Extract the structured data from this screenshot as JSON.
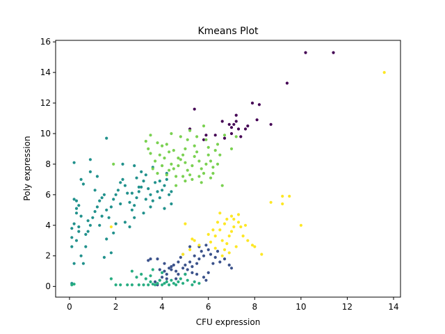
{
  "chart_data": {
    "type": "scatter",
    "title": "Kmeans Plot",
    "xlabel": "CFU expression",
    "ylabel": "Poly expression",
    "xlim": [
      -0.6,
      14.3
    ],
    "ylim": [
      -0.7,
      16.1
    ],
    "xticks": [
      0,
      2,
      4,
      6,
      8,
      10,
      12,
      14
    ],
    "yticks": [
      0,
      2,
      4,
      6,
      8,
      10,
      12,
      14,
      16
    ],
    "grid": false,
    "series": [
      {
        "color": "#440154",
        "points": [
          [
            10.2,
            15.3
          ],
          [
            11.4,
            15.3
          ],
          [
            9.4,
            13.3
          ],
          [
            7.9,
            12.0
          ],
          [
            8.2,
            11.9
          ],
          [
            7.2,
            11.2
          ],
          [
            5.4,
            11.6
          ],
          [
            6.6,
            10.8
          ],
          [
            6.9,
            10.6
          ],
          [
            7.2,
            10.8
          ],
          [
            7.7,
            10.5
          ],
          [
            7.6,
            10.3
          ],
          [
            8.1,
            10.9
          ],
          [
            8.7,
            10.6
          ],
          [
            5.9,
            9.9
          ],
          [
            6.3,
            9.9
          ],
          [
            6.7,
            9.7
          ],
          [
            7.0,
            10.0
          ],
          [
            7.3,
            10.3
          ],
          [
            7.4,
            9.8
          ],
          [
            7.0,
            10.4
          ],
          [
            5.2,
            10.3
          ],
          [
            5.8,
            9.6
          ],
          [
            7.1,
            10.6
          ]
        ]
      },
      {
        "color": "#3b528b",
        "points": [
          [
            3.5,
            1.8
          ],
          [
            3.8,
            1.8
          ],
          [
            4.1,
            1.5
          ],
          [
            4.4,
            1.3
          ],
          [
            4.6,
            1.0
          ],
          [
            4.2,
            0.8
          ],
          [
            4.0,
            0.6
          ],
          [
            3.9,
            0.4
          ],
          [
            3.7,
            0.3
          ],
          [
            4.3,
            1.2
          ],
          [
            4.5,
            1.4
          ],
          [
            4.7,
            1.6
          ],
          [
            4.9,
            1.2
          ],
          [
            5.0,
            0.8
          ],
          [
            5.1,
            1.1
          ],
          [
            5.2,
            1.6
          ],
          [
            5.3,
            1.3
          ],
          [
            5.5,
            1.5
          ],
          [
            5.6,
            1.8
          ],
          [
            5.4,
            2.0
          ],
          [
            5.7,
            2.3
          ],
          [
            5.9,
            2.7
          ],
          [
            6.0,
            2.4
          ],
          [
            5.8,
            2.0
          ],
          [
            6.1,
            2.1
          ],
          [
            6.3,
            1.9
          ],
          [
            6.5,
            1.6
          ],
          [
            6.7,
            1.8
          ],
          [
            6.9,
            1.4
          ],
          [
            7.0,
            1.2
          ],
          [
            6.2,
            1.5
          ],
          [
            5.5,
            0.8
          ],
          [
            5.8,
            0.6
          ],
          [
            5.9,
            0.4
          ],
          [
            6.0,
            0.9
          ],
          [
            4.8,
            1.9
          ],
          [
            4.9,
            2.1
          ],
          [
            5.2,
            2.6
          ],
          [
            3.4,
            1.7
          ],
          [
            3.9,
            1.1
          ],
          [
            4.1,
            1.0
          ],
          [
            4.2,
            0.5
          ],
          [
            3.8,
            0.1
          ],
          [
            4.6,
            0.5
          ],
          [
            5.0,
            1.4
          ],
          [
            5.3,
            0.9
          ],
          [
            6.4,
            2.3
          ],
          [
            5.6,
            2.6
          ],
          [
            4.4,
            1.1
          ],
          [
            4.7,
            0.8
          ]
        ]
      },
      {
        "color": "#21918c",
        "points": [
          [
            0.1,
            0.2
          ],
          [
            0.2,
            1.5
          ],
          [
            0.1,
            2.6
          ],
          [
            0.1,
            3.2
          ],
          [
            0.1,
            3.8
          ],
          [
            0.2,
            4.1
          ],
          [
            0.3,
            4.8
          ],
          [
            0.2,
            5.7
          ],
          [
            0.3,
            5.6
          ],
          [
            0.4,
            5.3
          ],
          [
            0.5,
            4.6
          ],
          [
            0.4,
            3.9
          ],
          [
            0.3,
            3.0
          ],
          [
            0.5,
            2.0
          ],
          [
            0.6,
            1.5
          ],
          [
            0.7,
            3.4
          ],
          [
            0.8,
            3.6
          ],
          [
            0.9,
            4.0
          ],
          [
            1.0,
            4.5
          ],
          [
            1.1,
            4.9
          ],
          [
            1.2,
            5.2
          ],
          [
            1.3,
            5.6
          ],
          [
            1.4,
            5.8
          ],
          [
            1.5,
            6.0
          ],
          [
            1.6,
            5.0
          ],
          [
            1.7,
            4.5
          ],
          [
            1.8,
            5.2
          ],
          [
            1.9,
            5.7
          ],
          [
            2.0,
            6.0
          ],
          [
            2.1,
            6.3
          ],
          [
            2.2,
            6.8
          ],
          [
            2.3,
            7.0
          ],
          [
            2.4,
            6.6
          ],
          [
            2.5,
            6.1
          ],
          [
            2.6,
            5.5
          ],
          [
            2.7,
            5.0
          ],
          [
            2.8,
            5.3
          ],
          [
            2.9,
            5.8
          ],
          [
            3.0,
            6.2
          ],
          [
            3.1,
            6.5
          ],
          [
            3.2,
            6.9
          ],
          [
            3.3,
            7.3
          ],
          [
            3.4,
            6.4
          ],
          [
            3.5,
            6.0
          ],
          [
            3.6,
            5.6
          ],
          [
            3.7,
            6.8
          ],
          [
            3.8,
            6.2
          ],
          [
            3.9,
            5.8
          ],
          [
            4.0,
            6.3
          ],
          [
            4.1,
            6.6
          ],
          [
            4.2,
            7.0
          ],
          [
            4.3,
            6.0
          ],
          [
            4.4,
            5.4
          ],
          [
            4.1,
            5.1
          ],
          [
            3.5,
            5.2
          ],
          [
            3.2,
            4.8
          ],
          [
            2.8,
            4.5
          ],
          [
            2.4,
            4.2
          ],
          [
            1.9,
            3.5
          ],
          [
            1.6,
            3.1
          ],
          [
            1.5,
            1.9
          ],
          [
            1.8,
            2.2
          ],
          [
            0.2,
            8.1
          ],
          [
            0.5,
            7.0
          ],
          [
            0.9,
            7.5
          ],
          [
            0.9,
            8.3
          ],
          [
            1.1,
            6.3
          ],
          [
            1.6,
            9.7
          ],
          [
            2.3,
            8.0
          ],
          [
            2.8,
            7.9
          ],
          [
            3.1,
            7.5
          ],
          [
            3.6,
            7.8
          ],
          [
            4.2,
            7.4
          ],
          [
            3.0,
            6.5
          ],
          [
            2.2,
            5.4
          ],
          [
            1.4,
            4.6
          ],
          [
            0.8,
            4.3
          ],
          [
            0.6,
            6.7
          ],
          [
            1.2,
            7.2
          ],
          [
            2.7,
            6.1
          ],
          [
            3.3,
            5.7
          ],
          [
            3.9,
            6.9
          ],
          [
            4.4,
            6.2
          ],
          [
            2.6,
            3.9
          ],
          [
            2.0,
            4.1
          ],
          [
            0.4,
            3.6
          ],
          [
            0.7,
            2.6
          ],
          [
            0.3,
            5.1
          ],
          [
            1.3,
            4.0
          ],
          [
            2.9,
            7.1
          ]
        ]
      },
      {
        "color": "#27ad81",
        "points": [
          [
            0.1,
            0.1
          ],
          [
            0.2,
            0.15
          ],
          [
            1.8,
            0.5
          ],
          [
            2.0,
            0.1
          ],
          [
            2.2,
            0.1
          ],
          [
            2.5,
            0.1
          ],
          [
            2.7,
            0.1
          ],
          [
            2.7,
            1.0
          ],
          [
            3.0,
            0.1
          ],
          [
            3.2,
            0.1
          ],
          [
            3.3,
            0.5
          ],
          [
            3.4,
            0.1
          ],
          [
            3.5,
            0.3
          ],
          [
            3.6,
            0.15
          ],
          [
            3.7,
            0.1
          ],
          [
            3.8,
            0.2
          ],
          [
            3.9,
            0.4
          ],
          [
            4.0,
            0.1
          ],
          [
            4.1,
            0.2
          ],
          [
            4.2,
            0.3
          ],
          [
            4.3,
            0.1
          ],
          [
            4.4,
            0.4
          ],
          [
            4.5,
            0.2
          ],
          [
            4.6,
            0.1
          ],
          [
            4.7,
            0.3
          ],
          [
            4.8,
            0.5
          ],
          [
            4.9,
            0.2
          ],
          [
            5.0,
            0.8
          ],
          [
            5.1,
            0.4
          ],
          [
            5.3,
            0.1
          ],
          [
            5.4,
            0.3
          ],
          [
            5.6,
            0.2
          ],
          [
            3.1,
            0.8
          ],
          [
            3.6,
            1.1
          ],
          [
            2.9,
            0.6
          ],
          [
            3.5,
            0.7
          ],
          [
            4.0,
            0.9
          ]
        ]
      },
      {
        "color": "#7ad151",
        "points": [
          [
            3.3,
            9.5
          ],
          [
            3.4,
            9.0
          ],
          [
            3.5,
            8.7
          ],
          [
            3.7,
            8.2
          ],
          [
            3.6,
            7.7
          ],
          [
            3.8,
            7.4
          ],
          [
            4.0,
            7.9
          ],
          [
            4.1,
            8.4
          ],
          [
            4.0,
            9.2
          ],
          [
            4.2,
            9.3
          ],
          [
            4.3,
            8.8
          ],
          [
            4.4,
            8.0
          ],
          [
            4.5,
            7.7
          ],
          [
            4.6,
            7.2
          ],
          [
            4.7,
            7.9
          ],
          [
            4.8,
            8.3
          ],
          [
            4.9,
            8.6
          ],
          [
            5.0,
            8.1
          ],
          [
            5.1,
            7.6
          ],
          [
            5.2,
            7.3
          ],
          [
            5.3,
            7.9
          ],
          [
            5.4,
            8.5
          ],
          [
            5.5,
            8.8
          ],
          [
            5.6,
            8.2
          ],
          [
            5.7,
            7.7
          ],
          [
            5.8,
            7.4
          ],
          [
            5.9,
            8.0
          ],
          [
            6.0,
            8.6
          ],
          [
            6.1,
            8.2
          ],
          [
            6.2,
            7.8
          ],
          [
            6.3,
            8.9
          ],
          [
            6.4,
            9.3
          ],
          [
            6.5,
            8.6
          ],
          [
            6.6,
            6.6
          ],
          [
            5.5,
            9.8
          ],
          [
            5.8,
            10.5
          ],
          [
            5.1,
            9.6
          ],
          [
            5.2,
            10.2
          ],
          [
            4.8,
            9.8
          ],
          [
            4.4,
            10.0
          ],
          [
            6.0,
            9.1
          ],
          [
            6.7,
            9.9
          ],
          [
            7.2,
            9.8
          ],
          [
            7.0,
            9.0
          ],
          [
            6.4,
            8.0
          ],
          [
            5.6,
            7.2
          ],
          [
            5.0,
            6.9
          ],
          [
            4.6,
            6.6
          ],
          [
            4.2,
            7.3
          ],
          [
            3.9,
            8.6
          ],
          [
            3.5,
            9.9
          ],
          [
            1.9,
            8.0
          ],
          [
            5.3,
            7.0
          ],
          [
            5.7,
            6.8
          ],
          [
            6.2,
            7.4
          ],
          [
            4.5,
            8.9
          ],
          [
            4.9,
            7.2
          ],
          [
            5.4,
            9.2
          ],
          [
            5.9,
            9.6
          ],
          [
            6.1,
            7.1
          ],
          [
            4.3,
            7.6
          ],
          [
            4.7,
            8.4
          ],
          [
            3.8,
            9.4
          ],
          [
            5.0,
            9.0
          ]
        ]
      },
      {
        "color": "#fde725",
        "points": [
          [
            13.6,
            14.0
          ],
          [
            10.0,
            4.0
          ],
          [
            9.2,
            5.9
          ],
          [
            9.5,
            5.9
          ],
          [
            9.2,
            5.4
          ],
          [
            8.7,
            5.5
          ],
          [
            8.3,
            2.1
          ],
          [
            7.9,
            2.7
          ],
          [
            7.7,
            3.0
          ],
          [
            7.5,
            3.3
          ],
          [
            7.4,
            3.9
          ],
          [
            7.3,
            4.2
          ],
          [
            7.3,
            4.7
          ],
          [
            7.1,
            4.4
          ],
          [
            7.0,
            3.6
          ],
          [
            6.9,
            3.3
          ],
          [
            6.8,
            2.8
          ],
          [
            6.7,
            2.4
          ],
          [
            6.6,
            3.0
          ],
          [
            6.5,
            3.7
          ],
          [
            6.4,
            4.2
          ],
          [
            6.3,
            3.3
          ],
          [
            6.2,
            3.7
          ],
          [
            6.1,
            2.9
          ],
          [
            6.5,
            4.8
          ],
          [
            6.8,
            4.4
          ],
          [
            7.1,
            3.9
          ],
          [
            7.2,
            2.6
          ],
          [
            6.9,
            2.2
          ],
          [
            5.4,
            3.0
          ],
          [
            5.6,
            2.7
          ],
          [
            5.3,
            3.1
          ],
          [
            5.0,
            4.1
          ],
          [
            4.9,
            2.1
          ],
          [
            5.2,
            2.4
          ],
          [
            6.0,
            3.4
          ],
          [
            6.6,
            2.0
          ],
          [
            7.6,
            4.0
          ],
          [
            8.0,
            2.6
          ],
          [
            1.8,
            3.9
          ],
          [
            6.7,
            4.1
          ],
          [
            7.0,
            4.6
          ],
          [
            6.3,
            2.5
          ]
        ]
      }
    ]
  }
}
